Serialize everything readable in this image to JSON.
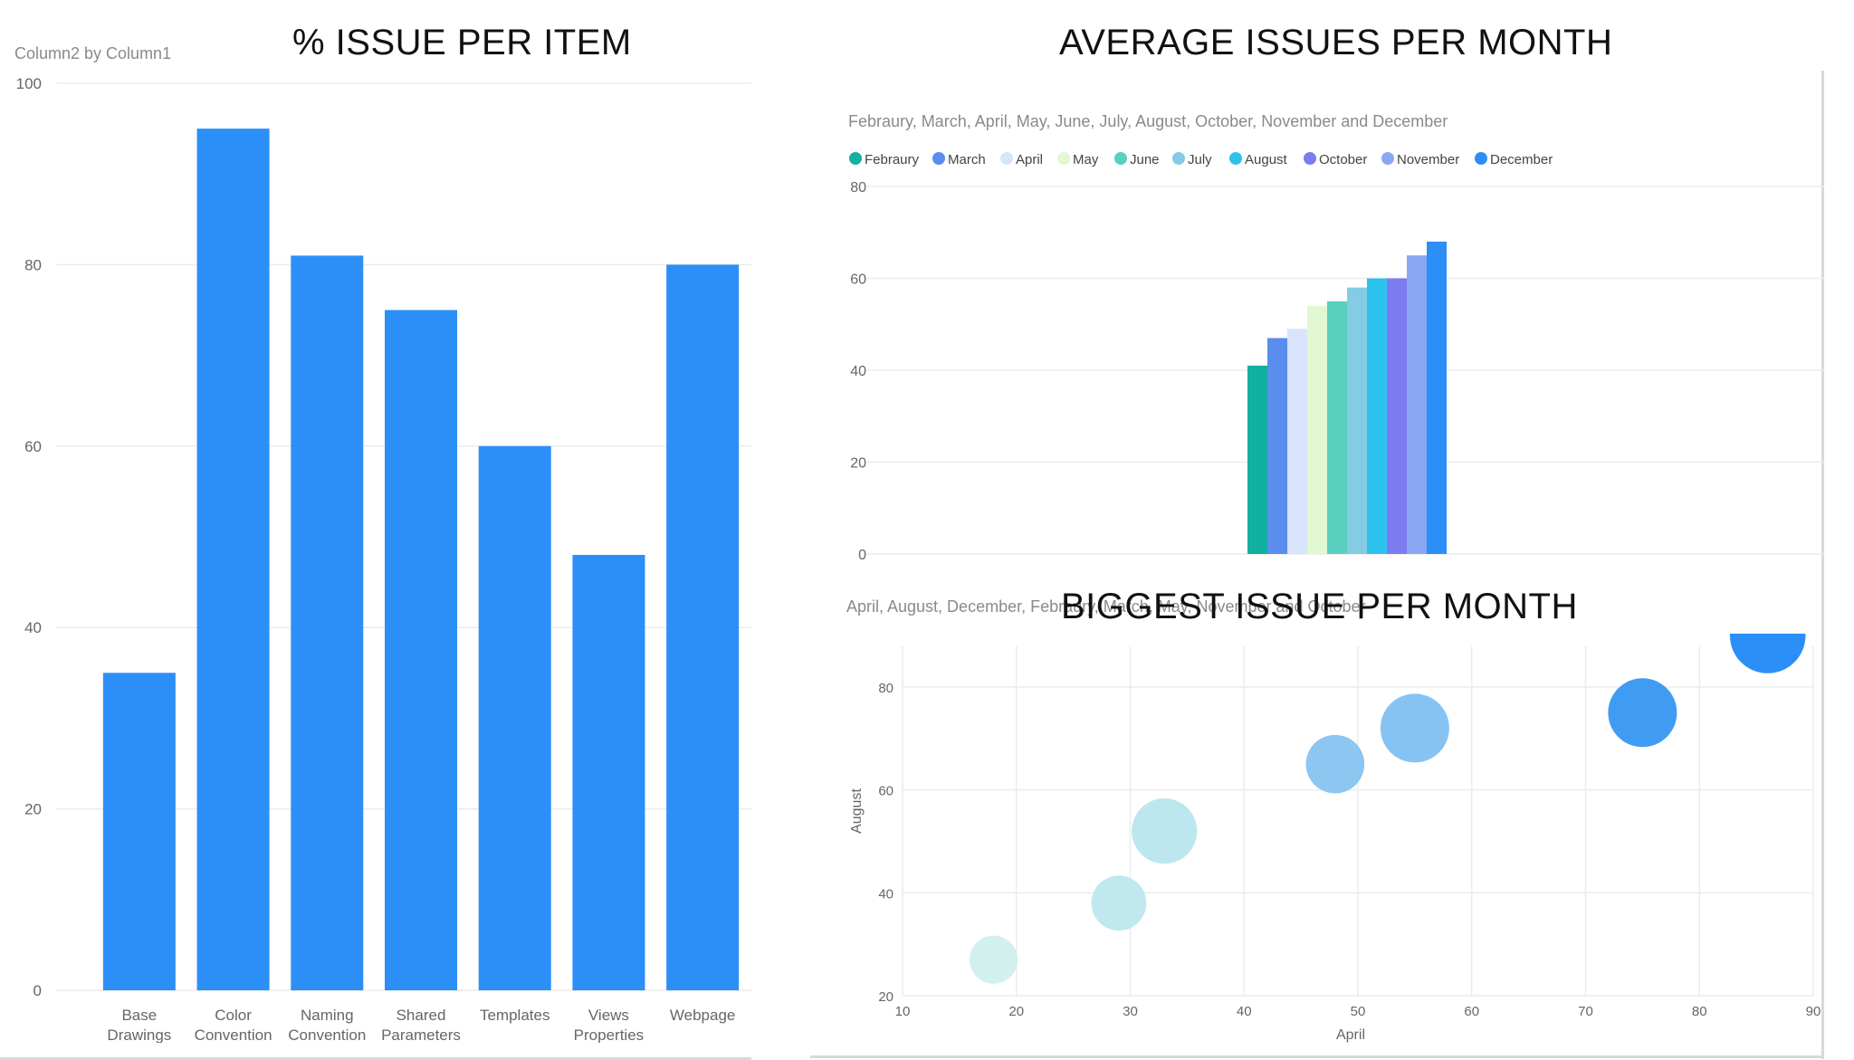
{
  "titles": {
    "left": "% ISSUE PER ITEM",
    "right_top": "AVERAGE ISSUES PER MONTH",
    "right_bottom": "BIGGEST ISSUE PER MONTH"
  },
  "colors": {
    "bar_blue": "#2b8ff7",
    "grid": "#ececec",
    "axis_text": "#666666",
    "subtitle_text": "#8a8a8a"
  },
  "chart_data": [
    {
      "type": "bar",
      "subtitle": "Column2 by Column1",
      "categories": [
        [
          "Base",
          "Drawings"
        ],
        [
          "Color",
          "Convention"
        ],
        [
          "Naming",
          "Convention"
        ],
        [
          "Shared",
          "Parameters"
        ],
        [
          "Templates"
        ],
        [
          "Views",
          "Properties"
        ],
        [
          "Webpage"
        ]
      ],
      "values": [
        35,
        95,
        81,
        75,
        60,
        48,
        80
      ],
      "ylim": [
        0,
        100
      ],
      "yticks": [
        0,
        20,
        40,
        60,
        80,
        100
      ],
      "grid": true,
      "color": "#2b8ff7"
    },
    {
      "type": "bar",
      "subtitle": "Febraury, March, April, May, June, July, August, October, November and December",
      "legend_position": "top-left",
      "series": [
        {
          "name": "Febraury",
          "values": [
            41
          ],
          "color": "#12b0a0"
        },
        {
          "name": "March",
          "values": [
            47
          ],
          "color": "#5a8dee"
        },
        {
          "name": "April",
          "values": [
            49
          ],
          "color": "#d8e4fb"
        },
        {
          "name": "May",
          "values": [
            54
          ],
          "color": "#e2f8d2"
        },
        {
          "name": "June",
          "values": [
            55
          ],
          "color": "#59cfc0"
        },
        {
          "name": "July",
          "values": [
            58
          ],
          "color": "#84cbe3"
        },
        {
          "name": "August",
          "values": [
            60
          ],
          "color": "#2bc3ee"
        },
        {
          "name": "October",
          "values": [
            60
          ],
          "color": "#7c7cf0"
        },
        {
          "name": "November",
          "values": [
            65
          ],
          "color": "#8aa7f3"
        },
        {
          "name": "December",
          "values": [
            68
          ],
          "color": "#2b8ff7"
        }
      ],
      "ylim": [
        0,
        80
      ],
      "yticks": [
        0,
        20,
        40,
        60,
        80
      ],
      "grid": true
    },
    {
      "type": "scatter",
      "subtitle": "April, August, December, Febraury, March, May, November and October",
      "xlabel": "April",
      "ylabel": "August",
      "xlim": [
        10,
        90
      ],
      "ylim": [
        20,
        90
      ],
      "xticks": [
        10,
        20,
        30,
        40,
        50,
        60,
        70,
        80,
        90
      ],
      "yticks": [
        20,
        40,
        60,
        80
      ],
      "grid": true,
      "points": [
        {
          "x": 18,
          "y": 27,
          "size": 0.7,
          "color": "#d2f1ee"
        },
        {
          "x": 29,
          "y": 38,
          "size": 0.8,
          "color": "#bfe9ef"
        },
        {
          "x": 33,
          "y": 52,
          "size": 0.95,
          "color": "#bde7ef"
        },
        {
          "x": 48,
          "y": 65,
          "size": 0.85,
          "color": "#8cc6f1"
        },
        {
          "x": 55,
          "y": 72,
          "size": 1.0,
          "color": "#86c3f3"
        },
        {
          "x": 75,
          "y": 75,
          "size": 1.0,
          "color": "#3f9cf2"
        },
        {
          "x": 86,
          "y": 90,
          "size": 1.1,
          "color": "#2b8ff7"
        }
      ]
    }
  ]
}
